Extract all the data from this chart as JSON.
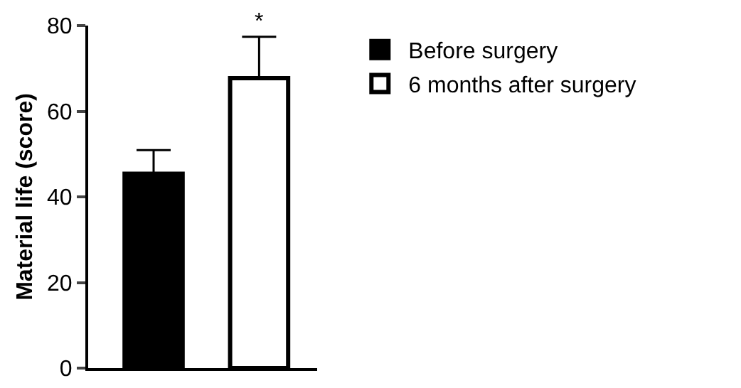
{
  "chart_data": {
    "type": "bar",
    "ylabel": "Material life (score)",
    "categories": [
      null,
      null
    ],
    "series": [
      {
        "name": "Before surgery",
        "color": "#000000",
        "values": [
          45.4,
          null
        ],
        "errors": [
          [
            45.4,
            50.9
          ],
          null
        ]
      },
      {
        "name": "6 months after surgery",
        "color": "#ffffff",
        "values": [
          null,
          67.7
        ],
        "errors": [
          null,
          [
            67.7,
            77.4
          ]
        ]
      }
    ],
    "ylim": [
      0,
      80
    ],
    "yticks": [
      0,
      20,
      40,
      60,
      80
    ],
    "grid": false,
    "legend": "top right",
    "annotations": [
      "*"
    ]
  }
}
